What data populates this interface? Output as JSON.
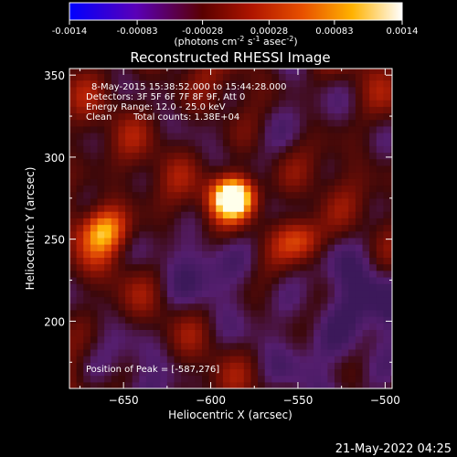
{
  "colorbar": {
    "tick_labels": [
      "-0.0014",
      "-0.00083",
      "-0.00028",
      "0.00028",
      "0.00083",
      "0.0014"
    ],
    "units_line": "(photons cm",
    "units_sup1": "-2",
    "units_mid": " s",
    "units_sup2": "-1",
    "units_end": " asec",
    "units_sup3": "-2",
    "units_close": ")"
  },
  "chart_data": {
    "type": "heatmap",
    "title": "Reconstructed RHESSI Image",
    "xlabel": "Heliocentric X (arcsec)",
    "ylabel": "Heliocentric Y (arcsec)",
    "xlim": [
      -681,
      -496
    ],
    "ylim": [
      159,
      354
    ],
    "x_ticks": [
      -650,
      -600,
      -550,
      -500
    ],
    "y_ticks": [
      200,
      250,
      300,
      350
    ],
    "x_tick_labels": [
      "−650",
      "−600",
      "−550",
      "−500"
    ],
    "y_tick_labels": [
      "200",
      "250",
      "300",
      "350"
    ],
    "colorbar_range": [
      -0.0014,
      0.0014
    ],
    "colormap": "red-temperature with blue negatives",
    "sources": [
      {
        "x": -587,
        "y": 276,
        "relative_intensity": 1.0
      },
      {
        "x": -661,
        "y": 256,
        "relative_intensity": 0.55
      },
      {
        "x": -548,
        "y": 250,
        "relative_intensity": 0.5
      }
    ],
    "peak": [
      -587,
      276
    ],
    "annotations": {
      "time": "8-May-2015 15:38:52.000 to 15:44:28.000",
      "detectors": "Detectors: 3F 5F 6F 7F 8F 9F, Att 0",
      "energy": "Energy Range: 12.0 - 25.0 keV",
      "clean_label": "Clean",
      "counts": "Total counts: 1.38E+04",
      "peak_text": "Position of Peak = [-587,276]"
    }
  },
  "footer": {
    "timestamp": "21-May-2022 04:25"
  }
}
